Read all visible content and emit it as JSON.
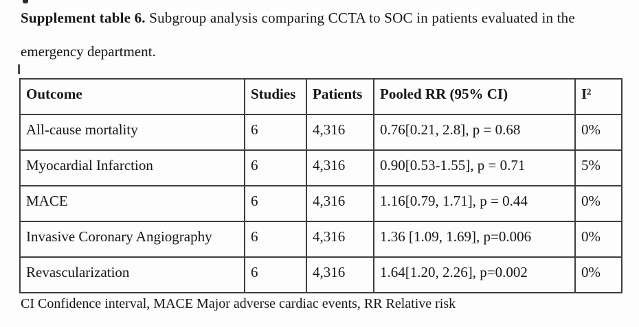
{
  "document": {
    "title_bold": "Supplement table 6.",
    "title_rest": " Subgroup analysis comparing CCTA to SOC in patients evaluated in the",
    "title_line2": "emergency department.",
    "footnote": "CI Confidence interval, MACE Major adverse cardiac events, RR Relative risk"
  },
  "table": {
    "headers": [
      "Outcome",
      "Studies",
      "Patients",
      "Pooled RR (95% CI)",
      "I²"
    ],
    "rows": [
      [
        "All-cause mortality",
        "6",
        "4,316",
        "0.76[0.21, 2.8], p = 0.68",
        "0%"
      ],
      [
        "Myocardial Infarction",
        "6",
        "4,316",
        "0.90[0.53-1.55], p = 0.71",
        "5%"
      ],
      [
        "MACE",
        "6",
        "4,316",
        "1.16[0.79, 1.71], p = 0.44",
        "0%"
      ],
      [
        "Invasive Coronary Angiography",
        "6",
        "4,316",
        "1.36 [1.09, 1.69], p=0.006",
        "0%"
      ],
      [
        "Revascularization",
        "6",
        "4,316",
        "1.64[1.20, 2.26], p=0.002",
        "0%"
      ]
    ]
  },
  "colors": {
    "background": "#fdfdfd",
    "text": "#161616",
    "border": "#3e3e3e"
  }
}
